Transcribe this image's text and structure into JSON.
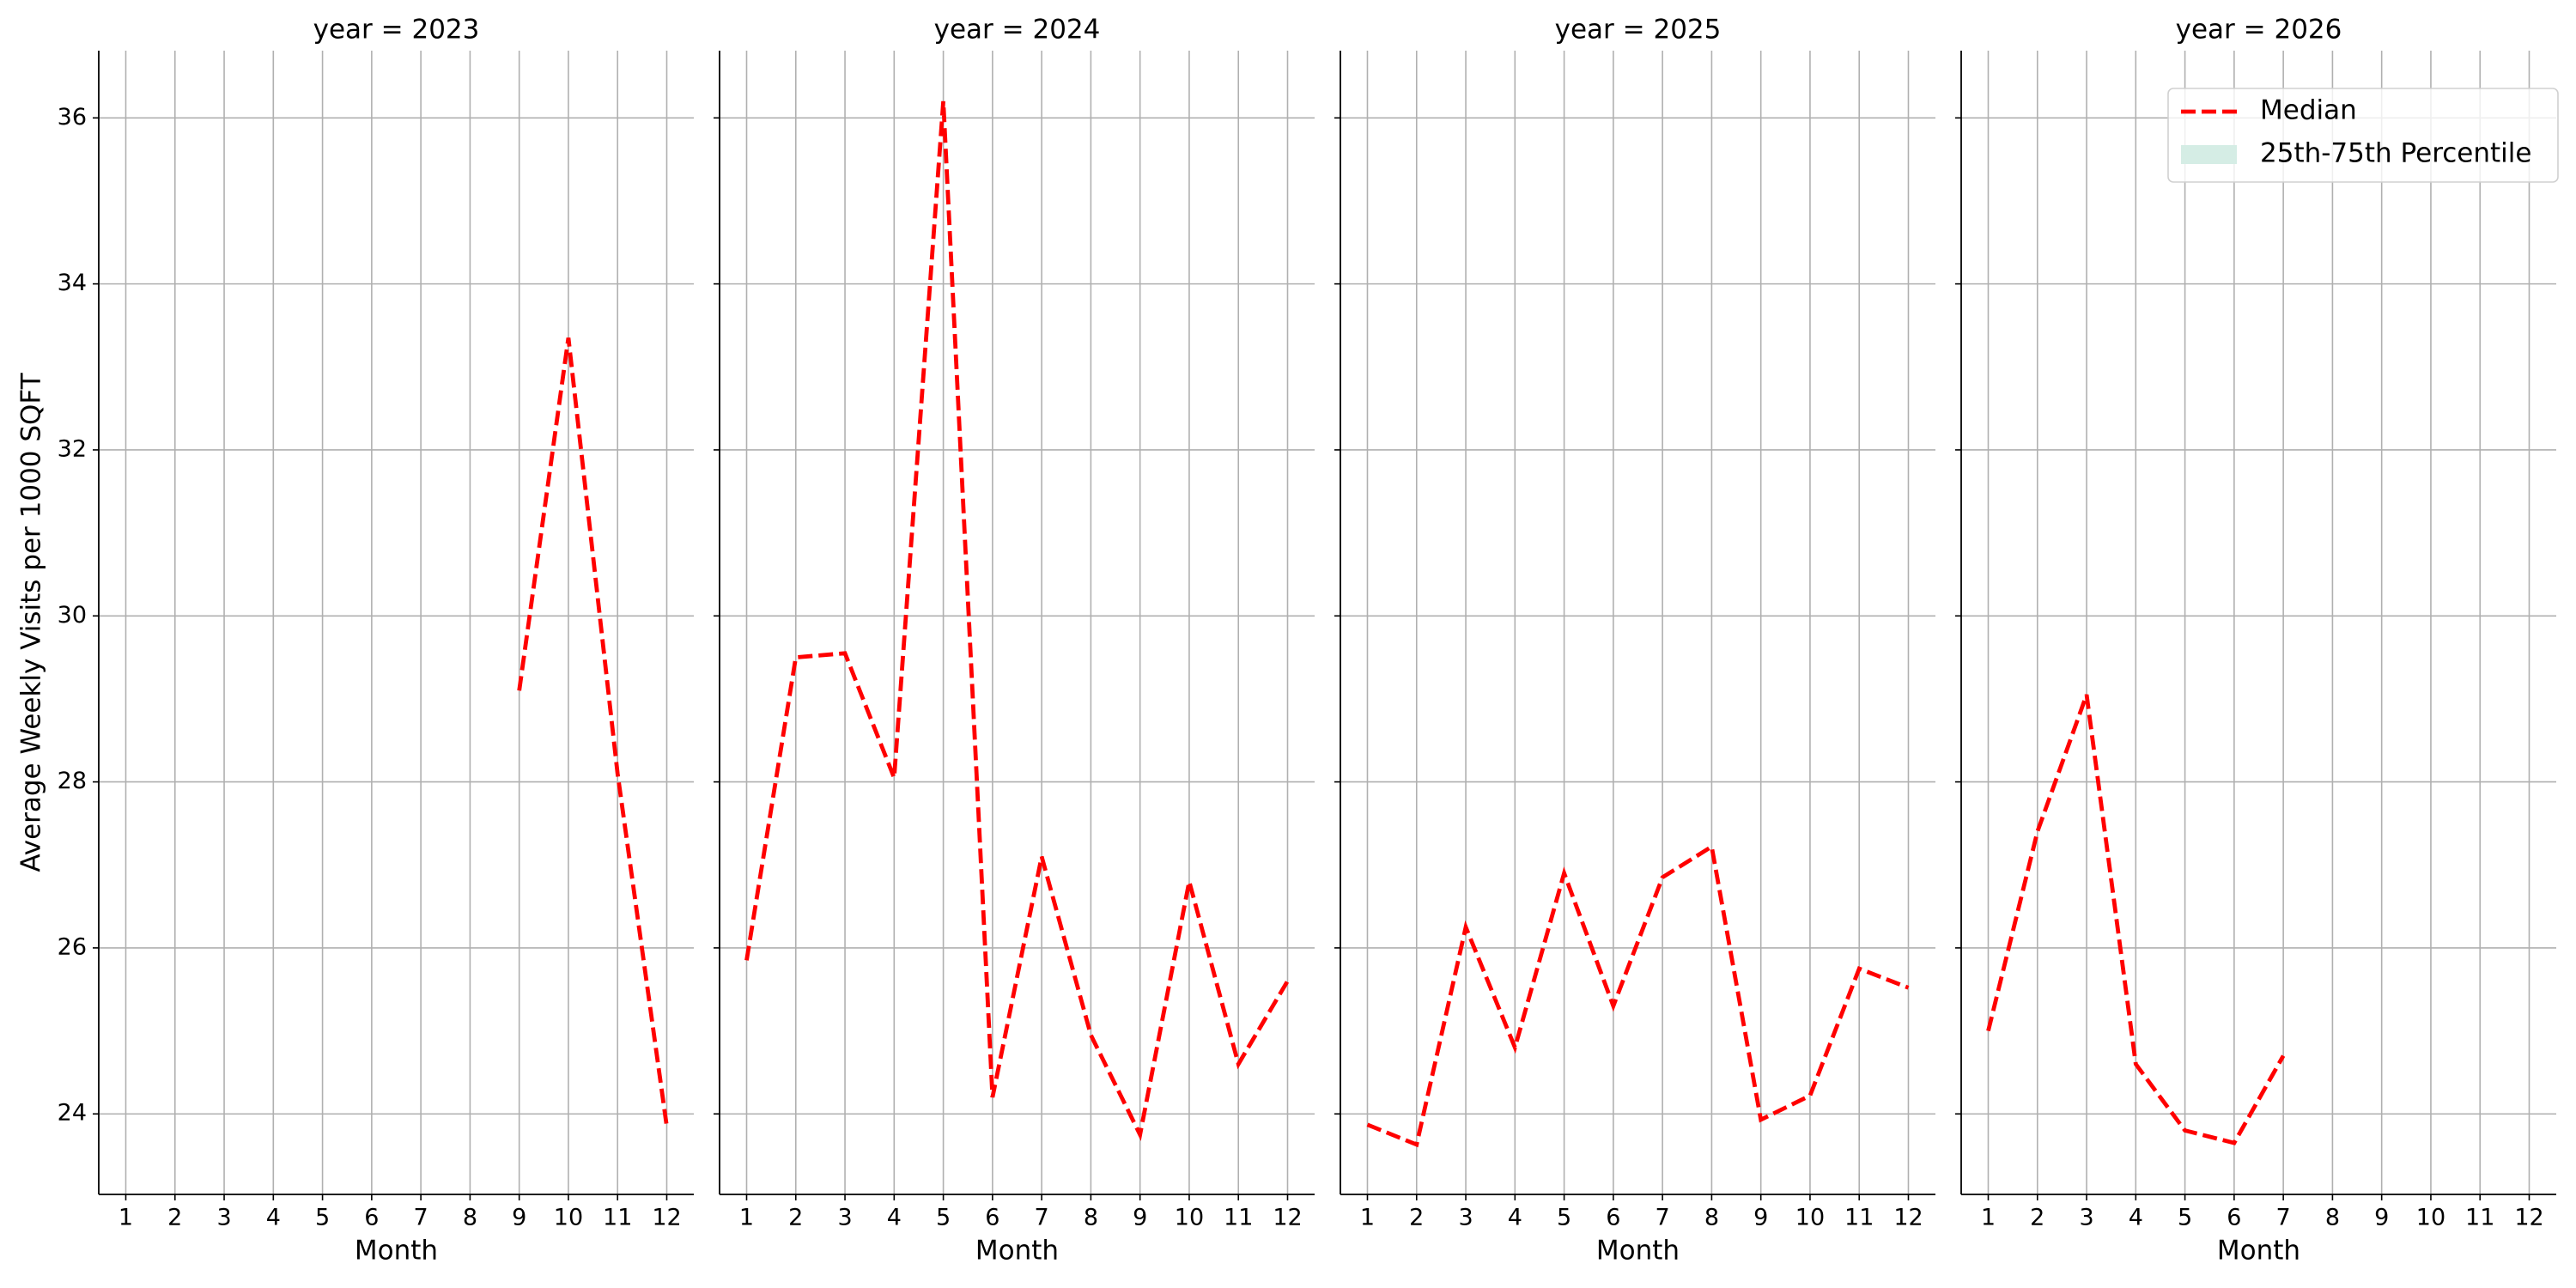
{
  "chart_data": [
    {
      "type": "line",
      "title": "year = 2023",
      "ylabel": "Average Weekly Visits per 1000 SQFT",
      "xlabel": "Month",
      "x": [
        9,
        10,
        11,
        12
      ],
      "series": [
        {
          "name": "Median",
          "color": "#ff0000",
          "values": [
            29.1,
            33.35,
            28.1,
            23.85
          ]
        }
      ],
      "xlim": [
        0.45,
        12.55
      ],
      "ylim": [
        23.03,
        36.81
      ],
      "xticks": [
        1,
        2,
        3,
        4,
        5,
        6,
        7,
        8,
        9,
        10,
        11,
        12
      ],
      "yticks": [
        24,
        26,
        28,
        30,
        32,
        34,
        36
      ],
      "grid": true
    },
    {
      "type": "line",
      "title": "year = 2024",
      "xlabel": "Month",
      "x": [
        1,
        2,
        3,
        4,
        5,
        6,
        7,
        8,
        9,
        10,
        11,
        12
      ],
      "series": [
        {
          "name": "Median",
          "color": "#ff0000",
          "values": [
            25.85,
            29.5,
            29.55,
            28.05,
            36.2,
            24.2,
            27.1,
            24.95,
            23.75,
            26.8,
            24.6,
            25.6
          ]
        }
      ],
      "xlim": [
        0.45,
        12.55
      ],
      "ylim": [
        23.03,
        36.81
      ],
      "xticks": [
        1,
        2,
        3,
        4,
        5,
        6,
        7,
        8,
        9,
        10,
        11,
        12
      ],
      "grid": true
    },
    {
      "type": "line",
      "title": "year = 2025",
      "xlabel": "Month",
      "x": [
        1,
        2,
        3,
        4,
        5,
        6,
        7,
        8,
        9,
        10,
        11,
        12
      ],
      "series": [
        {
          "name": "Median",
          "color": "#ff0000",
          "values": [
            23.87,
            23.63,
            26.25,
            24.8,
            26.9,
            25.3,
            26.85,
            27.22,
            23.93,
            24.22,
            25.75,
            25.52
          ]
        }
      ],
      "xlim": [
        0.45,
        12.55
      ],
      "ylim": [
        23.03,
        36.81
      ],
      "xticks": [
        1,
        2,
        3,
        4,
        5,
        6,
        7,
        8,
        9,
        10,
        11,
        12
      ],
      "grid": true
    },
    {
      "type": "line",
      "title": "year = 2026",
      "xlabel": "Month",
      "x": [
        1,
        2,
        3,
        4,
        5,
        6,
        7
      ],
      "series": [
        {
          "name": "Median",
          "color": "#ff0000",
          "values": [
            25.0,
            27.4,
            29.05,
            24.6,
            23.8,
            23.65,
            24.7
          ]
        }
      ],
      "xlim": [
        0.45,
        12.55
      ],
      "ylim": [
        23.03,
        36.81
      ],
      "xticks": [
        1,
        2,
        3,
        4,
        5,
        6,
        7,
        8,
        9,
        10,
        11,
        12
      ],
      "grid": true,
      "legend": {
        "loc": "upper right",
        "entries": [
          {
            "label": "Median",
            "color": "#ff0000",
            "style": "dashed"
          },
          {
            "label": "25th-75th Percentile",
            "color": "#d5ede5",
            "style": "patch"
          }
        ]
      }
    }
  ]
}
